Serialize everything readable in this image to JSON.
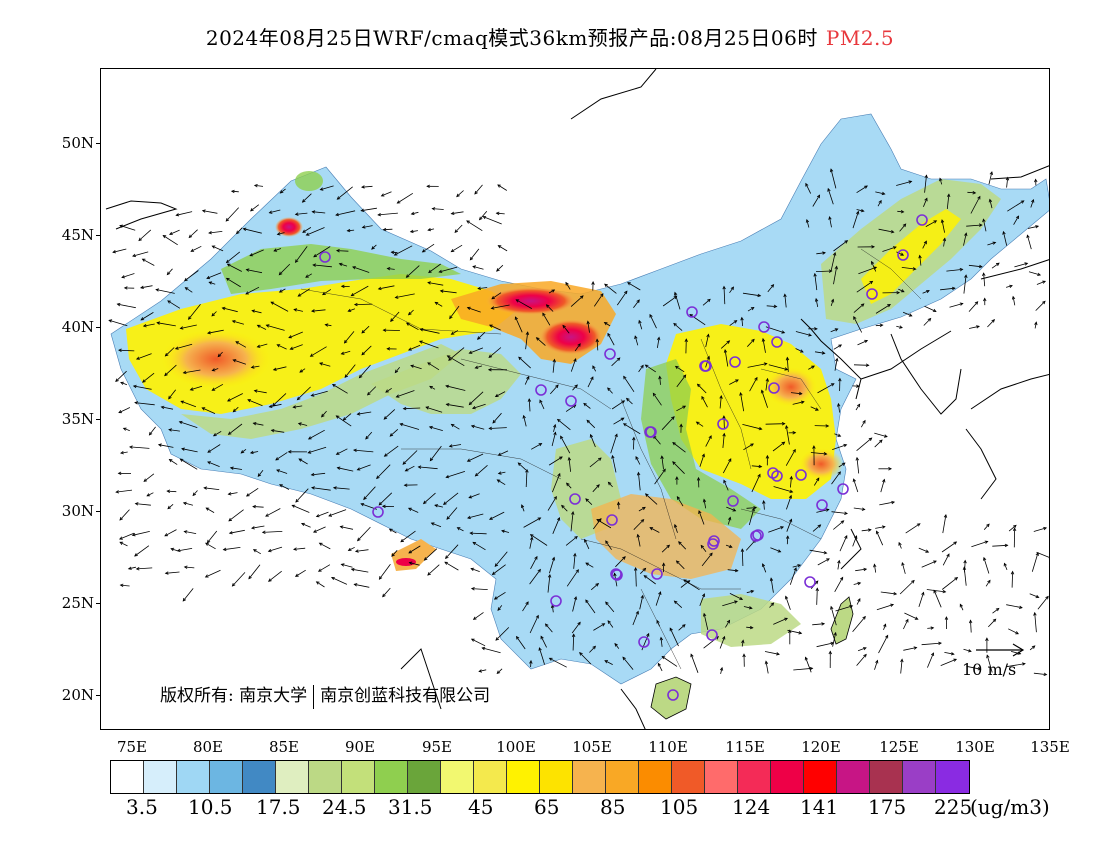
{
  "title": {
    "main": "2024年08月25日WRF/cmaq模式36km预报产品:08月25日06时",
    "species": "PM2.5",
    "species_color": "#e8383d"
  },
  "axes": {
    "lat_labels": [
      "50N",
      "45N",
      "40N",
      "35N",
      "30N",
      "25N",
      "20N"
    ],
    "lon_labels": [
      "75E",
      "80E",
      "85E",
      "90E",
      "95E",
      "100E",
      "105E",
      "110E",
      "115E",
      "120E",
      "125E",
      "130E",
      "135E"
    ]
  },
  "legend": {
    "colors": [
      "#ffffff",
      "#d6eefb",
      "#9fd7f4",
      "#6cb6e2",
      "#4189c4",
      "#dfeec0",
      "#bcd985",
      "#c3e07a",
      "#8fcf4f",
      "#6aa53a",
      "#f2f870",
      "#f4e94d",
      "#fff200",
      "#fde300",
      "#f6b34e",
      "#f9a825",
      "#fb8c00",
      "#f05a28",
      "#ff6b6b",
      "#f42b57",
      "#ee0047",
      "#ff0000",
      "#c71585",
      "#a83250",
      "#9a3ec6",
      "#8a2be2"
    ],
    "tick_labels": [
      "3.5",
      "10.5",
      "17.5",
      "24.5",
      "31.5",
      "45",
      "65",
      "85",
      "105",
      "124",
      "141",
      "175",
      "225"
    ],
    "unit": "(ug/m3)"
  },
  "copyright": {
    "part1": "版权所有: 南京大学",
    "part2": "南京创蓝科技有限公司"
  },
  "wind_reference": "10 m/s",
  "map_colors": {
    "coast": "#000000",
    "site_marker": "#7b2fd6",
    "low": "#6cb6e2",
    "mid_green": "#8fcf4f",
    "yellow": "#fff200",
    "orange": "#f6b34e",
    "red": "#ee0047"
  }
}
